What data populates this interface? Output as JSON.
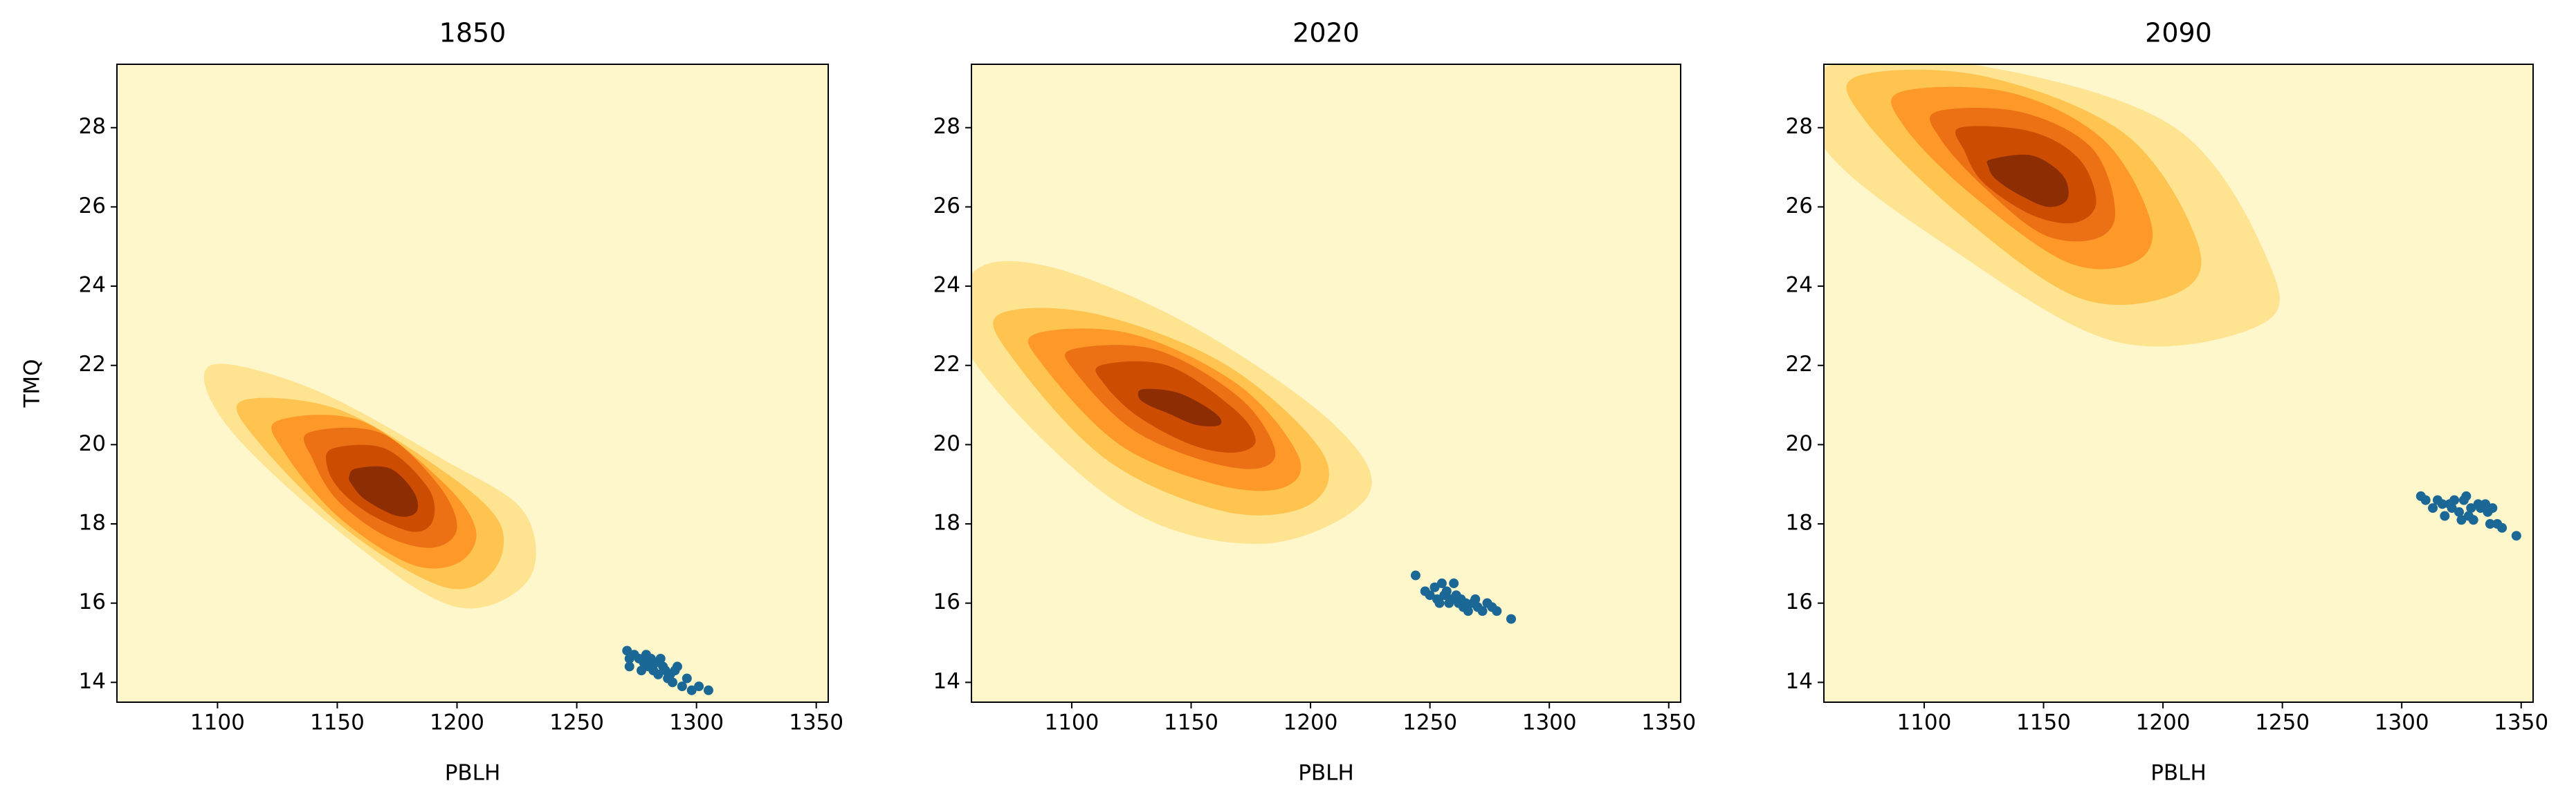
{
  "chart_data": [
    {
      "type": "kde",
      "title": "1850",
      "xlabel": "PBLH",
      "ylabel": "TMQ",
      "background": "#fff7cc",
      "xlim": [
        1058,
        1355
      ],
      "ylim": [
        13.5,
        29.6
      ],
      "xticks": [
        1100,
        1150,
        1200,
        1250,
        1300,
        1350
      ],
      "yticks": [
        14,
        16,
        18,
        20,
        22,
        24,
        26,
        28
      ],
      "contours": [
        {
          "color": "#fee391",
          "x": [
            1097,
            1140,
            1195,
            1228,
            1230,
            1200,
            1155,
            1105
          ],
          "y": [
            22.0,
            21.4,
            19.6,
            18.3,
            16.6,
            15.9,
            17.6,
            20.4
          ]
        },
        {
          "color": "#fec44f",
          "x": [
            1110,
            1150,
            1195,
            1218,
            1215,
            1195,
            1155,
            1118
          ],
          "y": [
            21.1,
            20.9,
            19.3,
            18.0,
            16.8,
            16.4,
            17.8,
            20.0
          ]
        },
        {
          "color": "#fe9929",
          "x": [
            1125,
            1160,
            1195,
            1208,
            1200,
            1180,
            1150,
            1128
          ],
          "y": [
            20.6,
            20.6,
            19.0,
            17.8,
            17.0,
            17.0,
            18.2,
            19.8
          ]
        },
        {
          "color": "#ec7014",
          "x": [
            1138,
            1168,
            1192,
            1200,
            1190,
            1170,
            1150,
            1140
          ],
          "y": [
            20.3,
            20.3,
            19.0,
            17.9,
            17.4,
            17.7,
            18.6,
            19.6
          ]
        },
        {
          "color": "#cc4c02",
          "x": [
            1148,
            1170,
            1188,
            1190,
            1182,
            1165,
            1152,
            1146
          ],
          "y": [
            19.9,
            19.9,
            18.9,
            18.1,
            17.8,
            18.2,
            18.8,
            19.4
          ]
        },
        {
          "color": "#8c2d04",
          "x": [
            1158,
            1172,
            1182,
            1183,
            1175,
            1162,
            1156,
            1155
          ],
          "y": [
            19.4,
            19.4,
            18.8,
            18.3,
            18.2,
            18.6,
            19.0,
            19.2
          ]
        }
      ],
      "series": [
        {
          "color": "#1b6896",
          "x": [
            1271,
            1272,
            1274,
            1276,
            1278,
            1279,
            1280,
            1281,
            1282,
            1283,
            1284,
            1285,
            1286,
            1287,
            1288,
            1289,
            1290,
            1291,
            1292,
            1294,
            1296,
            1298,
            1301,
            1305,
            1272,
            1277,
            1283
          ],
          "y": [
            14.8,
            14.4,
            14.7,
            14.6,
            14.5,
            14.7,
            14.4,
            14.6,
            14.3,
            14.5,
            14.2,
            14.6,
            14.4,
            14.3,
            14.1,
            14.2,
            14.0,
            14.3,
            14.4,
            13.9,
            14.1,
            13.8,
            13.9,
            13.8,
            14.6,
            14.3,
            14.5
          ]
        }
      ]
    },
    {
      "type": "kde",
      "title": "2020",
      "xlabel": "PBLH",
      "background": "#fff7cc",
      "xlim": [
        1058,
        1355
      ],
      "ylim": [
        13.5,
        29.6
      ],
      "xticks": [
        1100,
        1150,
        1200,
        1250,
        1300,
        1350
      ],
      "yticks": [
        14,
        16,
        18,
        20,
        22,
        24,
        26,
        28
      ],
      "contours": [
        {
          "color": "#fee391",
          "x": [
            1058,
            1090,
            1150,
            1210,
            1224,
            1180,
            1120,
            1058
          ],
          "y": [
            24.3,
            24.5,
            23.0,
            20.5,
            18.7,
            17.5,
            18.5,
            22.2
          ]
        },
        {
          "color": "#fec44f",
          "x": [
            1070,
            1110,
            1165,
            1205,
            1200,
            1165,
            1115,
            1075
          ],
          "y": [
            23.3,
            23.3,
            22.0,
            19.8,
            18.5,
            18.3,
            19.6,
            22.2
          ]
        },
        {
          "color": "#fe9929",
          "x": [
            1085,
            1125,
            1170,
            1195,
            1188,
            1160,
            1120,
            1088
          ],
          "y": [
            22.8,
            22.8,
            21.5,
            19.7,
            18.9,
            19.0,
            20.0,
            22.0
          ]
        },
        {
          "color": "#ec7014",
          "x": [
            1100,
            1135,
            1170,
            1185,
            1178,
            1155,
            1125,
            1102
          ],
          "y": [
            22.4,
            22.4,
            21.2,
            19.9,
            19.4,
            19.6,
            20.4,
            21.8
          ]
        },
        {
          "color": "#cc4c02",
          "x": [
            1112,
            1140,
            1168,
            1177,
            1168,
            1150,
            1128,
            1114
          ],
          "y": [
            22.0,
            22.0,
            20.9,
            20.1,
            19.8,
            20.0,
            20.7,
            21.5
          ]
        },
        {
          "color": "#8c2d04",
          "x": [
            1130,
            1145,
            1160,
            1162,
            1152,
            1140,
            1132,
            1128
          ],
          "y": [
            21.4,
            21.3,
            20.8,
            20.5,
            20.5,
            20.8,
            21.0,
            21.2
          ]
        }
      ],
      "series": [
        {
          "color": "#1b6896",
          "x": [
            1244,
            1248,
            1250,
            1252,
            1253,
            1254,
            1255,
            1256,
            1257,
            1258,
            1259,
            1260,
            1261,
            1262,
            1263,
            1264,
            1265,
            1266,
            1268,
            1269,
            1270,
            1272,
            1274,
            1276,
            1278,
            1284
          ],
          "y": [
            16.7,
            16.3,
            16.2,
            16.4,
            16.1,
            16.0,
            16.5,
            16.2,
            16.3,
            16.0,
            16.1,
            16.5,
            16.2,
            16.0,
            16.1,
            15.9,
            16.0,
            15.8,
            16.0,
            16.1,
            15.9,
            15.8,
            16.0,
            15.9,
            15.8,
            15.6
          ]
        }
      ]
    },
    {
      "type": "kde",
      "title": "2090",
      "xlabel": "PBLH",
      "background": "#fff7cc",
      "xlim": [
        1058,
        1355
      ],
      "ylim": [
        13.5,
        29.6
      ],
      "xticks": [
        1100,
        1150,
        1200,
        1250,
        1300,
        1350
      ],
      "yticks": [
        14,
        16,
        18,
        20,
        22,
        24,
        26,
        28
      ],
      "contours": [
        {
          "color": "#fee391",
          "x": [
            1058,
            1120,
            1205,
            1245,
            1240,
            1180,
            1110,
            1058
          ],
          "y": [
            29.5,
            29.6,
            28.0,
            24.5,
            23.0,
            22.6,
            25.0,
            27.5
          ]
        },
        {
          "color": "#fec44f",
          "x": [
            1072,
            1125,
            1185,
            1215,
            1205,
            1165,
            1115,
            1075
          ],
          "y": [
            29.3,
            29.3,
            27.8,
            25.0,
            23.8,
            23.7,
            25.8,
            28.2
          ]
        },
        {
          "color": "#fe9929",
          "x": [
            1090,
            1135,
            1175,
            1195,
            1188,
            1160,
            1120,
            1092
          ],
          "y": [
            28.9,
            28.9,
            27.7,
            25.6,
            24.6,
            24.6,
            26.3,
            28.0
          ]
        },
        {
          "color": "#ec7014",
          "x": [
            1105,
            1140,
            1170,
            1180,
            1172,
            1150,
            1125,
            1107
          ],
          "y": [
            28.4,
            28.4,
            27.5,
            25.9,
            25.2,
            25.3,
            26.5,
            27.7
          ]
        },
        {
          "color": "#cc4c02",
          "x": [
            1115,
            1145,
            1165,
            1172,
            1163,
            1145,
            1125,
            1117
          ],
          "y": [
            28.0,
            27.9,
            27.2,
            26.1,
            25.6,
            25.8,
            26.6,
            27.4
          ]
        },
        {
          "color": "#8c2d04",
          "x": [
            1128,
            1145,
            1158,
            1160,
            1152,
            1140,
            1130,
            1127
          ],
          "y": [
            27.2,
            27.3,
            26.8,
            26.2,
            26.0,
            26.3,
            26.7,
            27.0
          ]
        }
      ],
      "series": [
        {
          "color": "#1b6896",
          "x": [
            1308,
            1310,
            1313,
            1315,
            1317,
            1318,
            1320,
            1321,
            1322,
            1324,
            1325,
            1326,
            1327,
            1328,
            1329,
            1330,
            1332,
            1333,
            1335,
            1336,
            1337,
            1338,
            1340,
            1342,
            1348
          ],
          "y": [
            18.7,
            18.6,
            18.4,
            18.6,
            18.5,
            18.2,
            18.5,
            18.4,
            18.6,
            18.3,
            18.1,
            18.6,
            18.7,
            18.2,
            18.4,
            18.1,
            18.5,
            18.4,
            18.5,
            18.3,
            18.0,
            18.4,
            18.0,
            17.9,
            17.7
          ]
        }
      ]
    }
  ]
}
